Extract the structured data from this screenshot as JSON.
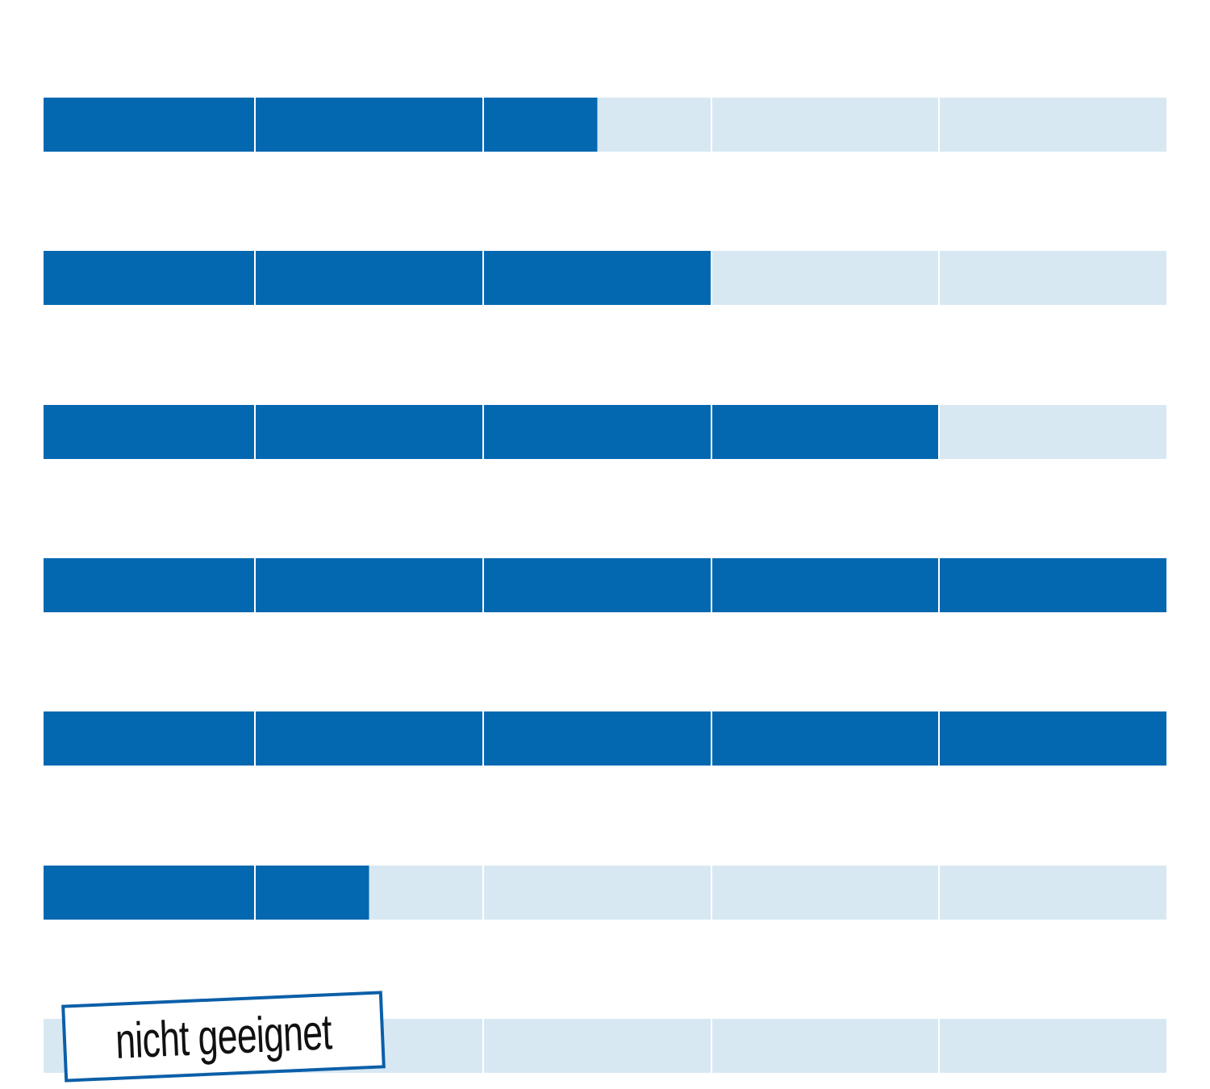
{
  "chart_data": {
    "type": "bar",
    "orientation": "horizontal",
    "segments_per_bar": 5,
    "max_value": 5,
    "colors": {
      "filled": "#0468b1",
      "empty": "#d8e8f3",
      "stamp_border": "#0b5fa8"
    },
    "bars": [
      {
        "value": 2.5
      },
      {
        "value": 3
      },
      {
        "value": 4
      },
      {
        "value": 5
      },
      {
        "value": 5
      },
      {
        "value": 1.5
      },
      {
        "value": 0,
        "stamp": "nicht geeignet"
      }
    ]
  }
}
